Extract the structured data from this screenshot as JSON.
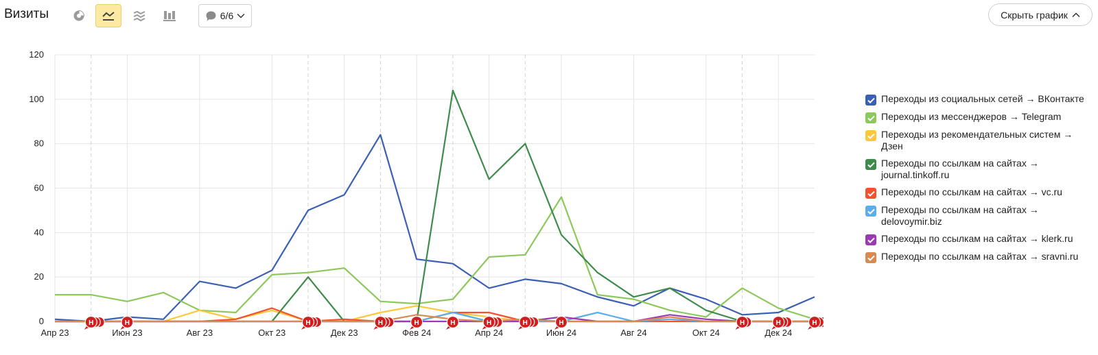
{
  "header": {
    "title": "Визиты",
    "notes_count": "6/6",
    "hide_chart_label": "Скрыть график"
  },
  "toolbar_icons": [
    "pie-chart-icon",
    "line-chart-icon",
    "area-chart-icon",
    "bar-chart-icon"
  ],
  "chart_data": {
    "type": "line",
    "categories": [
      "Апр 23",
      "Май 23",
      "Июн 23",
      "Июл 23",
      "Авг 23",
      "Сен 23",
      "Окт 23",
      "Ноя 23",
      "Дек 23",
      "Янв 24",
      "Фев 24",
      "Мар 24",
      "Апр 24",
      "Май 24",
      "Июн 24",
      "Июл 24",
      "Авг 24",
      "Сен 24",
      "Окт 24",
      "Ноя 24",
      "Дек 24",
      "Янв 25"
    ],
    "tick_labels": [
      "Апр 23",
      "Июн 23",
      "Авг 23",
      "Окт 23",
      "Дек 23",
      "Фев 24",
      "Апр 24",
      "Июн 24",
      "Авг 24",
      "Окт 24",
      "Дек 24"
    ],
    "tick_indices": [
      0,
      2,
      4,
      6,
      8,
      10,
      12,
      14,
      16,
      18,
      20
    ],
    "y_ticks": [
      0,
      20,
      40,
      60,
      80,
      100,
      120
    ],
    "ylim": [
      0,
      120
    ],
    "grid": true,
    "legend_position": "right",
    "series": [
      {
        "name": "Переходы из социальных сетей → ВКонтакте",
        "color": "#3a5fb5",
        "values": [
          1,
          0,
          2,
          1,
          18,
          15,
          23,
          50,
          57,
          84,
          28,
          26,
          15,
          19,
          17,
          11,
          7,
          15,
          10,
          3,
          4,
          11
        ]
      },
      {
        "name": "Переходы из мессенджеров → Telegram",
        "color": "#8dc85a",
        "values": [
          12,
          12,
          9,
          13,
          5,
          4,
          21,
          22,
          24,
          9,
          8,
          10,
          29,
          30,
          56,
          12,
          10,
          5,
          2,
          15,
          6,
          1
        ]
      },
      {
        "name": "Переходы из рекомендательных систем → Дзен",
        "color": "#ffc73a",
        "values": [
          0,
          0,
          0,
          0,
          5,
          1,
          5,
          0,
          0,
          4,
          7,
          4,
          2,
          0,
          0,
          0,
          0,
          0,
          0,
          0,
          0,
          0
        ]
      },
      {
        "name": "Переходы по ссылкам на сайтах → journal.tinkoff.ru",
        "color": "#3d8c4a",
        "values": [
          0,
          0,
          0,
          0,
          0,
          0,
          0,
          20,
          0,
          0,
          0,
          104,
          64,
          80,
          39,
          22,
          11,
          15,
          5,
          0,
          0,
          0
        ]
      },
      {
        "name": "Переходы по ссылкам на сайтах → vc.ru",
        "color": "#f4512c",
        "values": [
          0,
          0,
          0,
          0,
          0,
          1,
          6,
          0,
          1,
          0,
          0,
          4,
          4,
          0,
          0,
          0,
          0,
          0,
          0,
          0,
          0,
          0
        ]
      },
      {
        "name": "Переходы по ссылкам на сайтах → delovoymir.biz",
        "color": "#5caee8",
        "values": [
          0,
          0,
          0,
          0,
          0,
          0,
          0,
          0,
          0,
          0,
          0,
          4,
          0,
          0,
          0,
          4,
          0,
          1,
          0,
          0,
          0,
          0
        ]
      },
      {
        "name": "Переходы по ссылкам на сайтах → klerk.ru",
        "color": "#9b3bb3",
        "values": [
          0,
          0,
          0,
          0,
          0,
          0,
          0,
          0,
          0,
          0,
          0,
          0,
          0,
          0,
          2,
          0,
          0,
          3,
          1,
          0,
          0,
          0
        ]
      },
      {
        "name": "Переходы по ссылкам на сайтах → sravni.ru",
        "color": "#d88a52",
        "values": [
          0,
          0,
          0,
          0,
          0,
          0,
          0,
          0,
          0,
          0,
          3,
          1,
          0,
          1,
          0,
          0,
          0,
          2,
          0,
          0,
          0,
          0
        ]
      }
    ],
    "annotation_markers": [
      {
        "index": 1,
        "label": "Н",
        "stack": 3
      },
      {
        "index": 2,
        "label": "Н",
        "stack": 1
      },
      {
        "index": 7,
        "label": "Н",
        "stack": 3
      },
      {
        "index": 9,
        "label": "Н",
        "stack": 3
      },
      {
        "index": 10,
        "label": "Н",
        "stack": 1
      },
      {
        "index": 11,
        "label": "Н",
        "stack": 1
      },
      {
        "index": 12,
        "label": "Н",
        "stack": 3
      },
      {
        "index": 13,
        "label": "Н",
        "stack": 3
      },
      {
        "index": 14,
        "label": "Н",
        "stack": 1
      },
      {
        "index": 19,
        "label": "Н",
        "stack": 2
      },
      {
        "index": 20,
        "label": "Н",
        "stack": 3
      },
      {
        "index": 21,
        "label": "Н",
        "stack": 3
      }
    ],
    "dashed_gridlines_at": [
      1,
      7,
      9,
      11,
      13,
      19
    ]
  }
}
